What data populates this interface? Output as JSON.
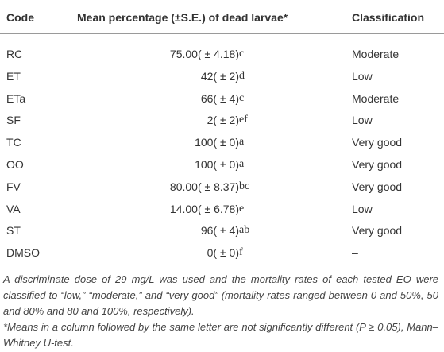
{
  "table": {
    "header": [
      "Code",
      "Mean percentage (±S.E.) of dead larvae*",
      "Classification"
    ],
    "rows": [
      {
        "code": "RC",
        "mean": "75.00( ± 4.18)",
        "letter": "c",
        "classification": "Moderate"
      },
      {
        "code": "ET",
        "mean": "42( ± 2)",
        "letter": "d",
        "classification": "Low"
      },
      {
        "code": "ETa",
        "mean": "66( ± 4)",
        "letter": "c",
        "classification": "Moderate"
      },
      {
        "code": "SF",
        "mean": "2( ± 2)",
        "letter": "ef",
        "classification": "Low"
      },
      {
        "code": "TC",
        "mean": "100( ± 0)",
        "letter": "a",
        "classification": "Very good"
      },
      {
        "code": "OO",
        "mean": "100( ± 0)",
        "letter": "a",
        "classification": "Very good"
      },
      {
        "code": "FV",
        "mean": "80.00( ± 8.37)",
        "letter": "bc",
        "classification": "Very good"
      },
      {
        "code": "VA",
        "mean": "14.00( ± 6.78)",
        "letter": "e",
        "classification": "Low"
      },
      {
        "code": "ST",
        "mean": "96( ± 4)",
        "letter": "ab",
        "classification": "Very good"
      },
      {
        "code": "DMSO",
        "mean": "0( ± 0)",
        "letter": "f",
        "classification": "–"
      }
    ]
  },
  "footnotes": [
    "A discriminate dose of 29 mg/L was used and the mortality rates of each tested EO were classified to “low,” “moderate,” and “very good” (mortality rates ranged between 0 and 50%, 50 and 80% and 80 and 100%, respectively).",
    "*Means in a column followed by the same letter are not significantly different (P ≥ 0.05), Mann– Whitney U-test."
  ]
}
